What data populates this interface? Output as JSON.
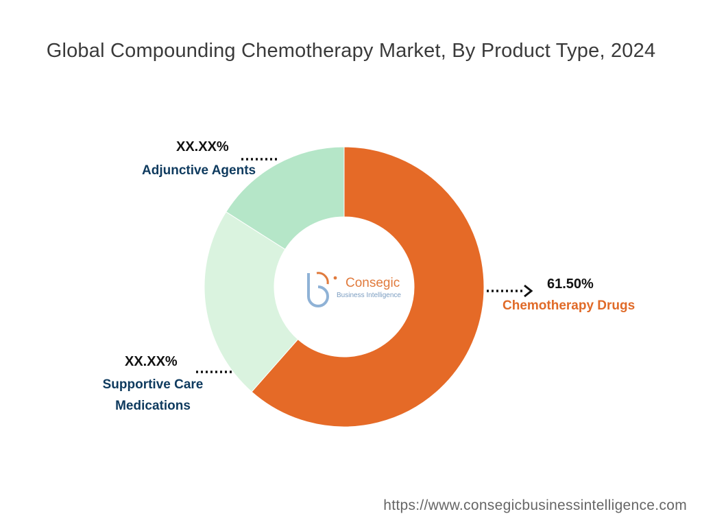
{
  "chart_data": {
    "type": "pie",
    "title": "Global Compounding Chemotherapy Market, By Product Type, 2024",
    "categories": [
      "Chemotherapy Drugs",
      "Supportive Care Medications",
      "Adjunctive Agents"
    ],
    "values": [
      61.5,
      22.5,
      16.0
    ],
    "value_labels": [
      "61.50%",
      "XX.XX%",
      "XX.XX%"
    ],
    "colors": [
      "#e56a27",
      "#daf3df",
      "#b5e6c8"
    ],
    "donut": true
  },
  "labels": {
    "chemo_value": "61.50%",
    "chemo_name": "Chemotherapy Drugs",
    "supportive_value": "XX.XX%",
    "supportive_name_line1": "Supportive Care",
    "supportive_name_line2": "Medications",
    "adjunctive_value": "XX.XX%",
    "adjunctive_name": "Adjunctive Agents"
  },
  "logo": {
    "name": "Consegic",
    "tagline": "Business Intelligence"
  },
  "source_url": "https://www.consegicbusinessintelligence.com"
}
